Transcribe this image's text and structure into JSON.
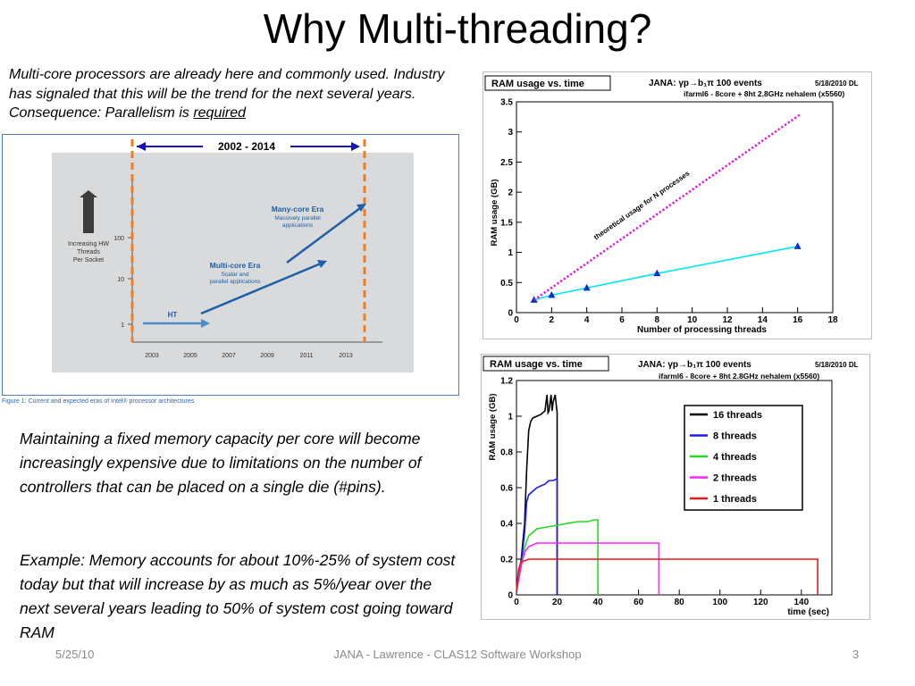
{
  "slide": {
    "title": "Why Multi-threading?",
    "intro_text": "Multi-core processors are already here and commonly used. Industry has signaled that this will be the trend for the next several years. Consequence: Parallelism is",
    "intro_required": "required",
    "body_paragraph_1": "Maintaining a fixed memory capacity per core will become increasingly expensive due to limitations on the number of controllers that can be placed on a single die (#pins).",
    "body_paragraph_2": "Example: Memory accounts for about 10%-25% of system cost today but that will increase by as much as 5%/year over the next several years leading to 50% of system cost going toward RAM",
    "footer": {
      "date": "5/25/10",
      "title": "JANA  - Lawrence  - CLAS12 Software Workshop",
      "page": "3"
    }
  },
  "intel_figure": {
    "range_label": "2002 - 2014",
    "y_axis_label": [
      "Increasing HW",
      "Threads",
      "Per Socket"
    ],
    "y_ticks": [
      "1",
      "10",
      "100"
    ],
    "x_ticks": [
      "2003",
      "2005",
      "2007",
      "2009",
      "2011",
      "2013"
    ],
    "eras": {
      "ht": "HT",
      "multicore_title": "Multi-core Era",
      "multicore_sub": [
        "Scalar and",
        "parallel applications"
      ],
      "manycore_title": "Many-core Era",
      "manycore_sub": [
        "Massively parallel",
        "applications"
      ]
    },
    "caption": "Figure 1: Current and expected eras of Intel® processor architectures"
  },
  "chart_data": [
    {
      "type": "line",
      "title": "RAM usage vs. time",
      "header_main": "JANA:   γp→b₁π    100 events",
      "header_sub": "ifarml6 - 8core + 8ht   2.8GHz nehalem (x5560)",
      "header_date": "5/18/2010 DL",
      "xlabel": "Number of processing threads",
      "ylabel": "RAM usage (GB)",
      "xlim": [
        0,
        18
      ],
      "ylim": [
        0,
        3.5
      ],
      "x_ticks": [
        0,
        2,
        4,
        6,
        8,
        10,
        12,
        14,
        16,
        18
      ],
      "y_ticks": [
        0,
        0.5,
        1,
        1.5,
        2,
        2.5,
        3,
        3.5
      ],
      "y_tick_labels": [
        "0",
        "0.5",
        "1",
        "1.5",
        "2",
        "2.5",
        "3",
        "3.5"
      ],
      "series": [
        {
          "name": "",
          "color": "#00e5ee",
          "marker": "triangle",
          "x": [
            1,
            2,
            4,
            8,
            16
          ],
          "y": [
            0.21,
            0.29,
            0.41,
            0.65,
            1.1
          ]
        },
        {
          "name": "theoretical usage for N processes",
          "color": "#e600e6",
          "dashed": true,
          "x": [
            1,
            16.1
          ],
          "y": [
            0.21,
            3.28
          ]
        }
      ],
      "annotation": "theoretical usage for N processes"
    },
    {
      "type": "line",
      "title": "RAM usage vs. time",
      "header_main": "JANA:   γp→b₁π    100 events",
      "header_sub": "ifarml6 - 8core + 8ht   2.8GHz nehalem (x5560)",
      "header_date": "5/18/2010 DL",
      "xlabel": "time (sec)",
      "ylabel": "RAM usage (GB)",
      "xlim": [
        0,
        155
      ],
      "ylim": [
        0,
        1.2
      ],
      "x_ticks": [
        0,
        20,
        40,
        60,
        80,
        100,
        120,
        140
      ],
      "y_ticks": [
        0,
        0.2,
        0.4,
        0.6,
        0.8,
        1,
        1.2
      ],
      "y_tick_labels": [
        "0",
        "0.2",
        "0.4",
        "0.6",
        "0.8",
        "1",
        "1.2"
      ],
      "legend": "top-right",
      "series": [
        {
          "name": "16 threads",
          "color": "#000000",
          "x": [
            0,
            2,
            4,
            5,
            6,
            7,
            8,
            10,
            12,
            14,
            15,
            15.5,
            16,
            17,
            17.5,
            18,
            19,
            20,
            20
          ],
          "y": [
            0.02,
            0.16,
            0.4,
            0.7,
            0.92,
            0.97,
            0.99,
            1.0,
            1.01,
            1.03,
            1.12,
            1.02,
            1.03,
            1.12,
            1.03,
            1.08,
            1.12,
            1.02,
            0
          ]
        },
        {
          "name": "8 threads",
          "color": "#1a1aff",
          "x": [
            0,
            2,
            4,
            5,
            6,
            8,
            10,
            12,
            14,
            16,
            18,
            20,
            20
          ],
          "y": [
            0.02,
            0.14,
            0.35,
            0.52,
            0.56,
            0.58,
            0.6,
            0.61,
            0.62,
            0.64,
            0.64,
            0.65,
            0
          ]
        },
        {
          "name": "4 threads",
          "color": "#22dd22",
          "x": [
            0,
            2,
            4,
            5,
            6,
            8,
            10,
            15,
            20,
            25,
            30,
            35,
            38,
            40,
            40
          ],
          "y": [
            0.02,
            0.14,
            0.26,
            0.3,
            0.33,
            0.35,
            0.37,
            0.38,
            0.39,
            0.4,
            0.41,
            0.41,
            0.42,
            0.42,
            0
          ]
        },
        {
          "name": "2 threads",
          "color": "#ff22ff",
          "x": [
            0,
            2,
            4,
            6,
            8,
            10,
            20,
            30,
            40,
            50,
            60,
            70,
            70
          ],
          "y": [
            0.02,
            0.15,
            0.24,
            0.27,
            0.28,
            0.29,
            0.29,
            0.29,
            0.29,
            0.29,
            0.29,
            0.29,
            0
          ]
        },
        {
          "name": "1 threads",
          "color": "#e61a1a",
          "x": [
            0,
            1,
            2,
            3,
            4,
            6,
            10,
            20,
            40,
            60,
            80,
            100,
            120,
            140,
            148,
            148
          ],
          "y": [
            0.02,
            0.14,
            0.18,
            0.19,
            0.19,
            0.2,
            0.2,
            0.2,
            0.2,
            0.2,
            0.2,
            0.2,
            0.2,
            0.2,
            0.2,
            0
          ]
        }
      ]
    }
  ]
}
